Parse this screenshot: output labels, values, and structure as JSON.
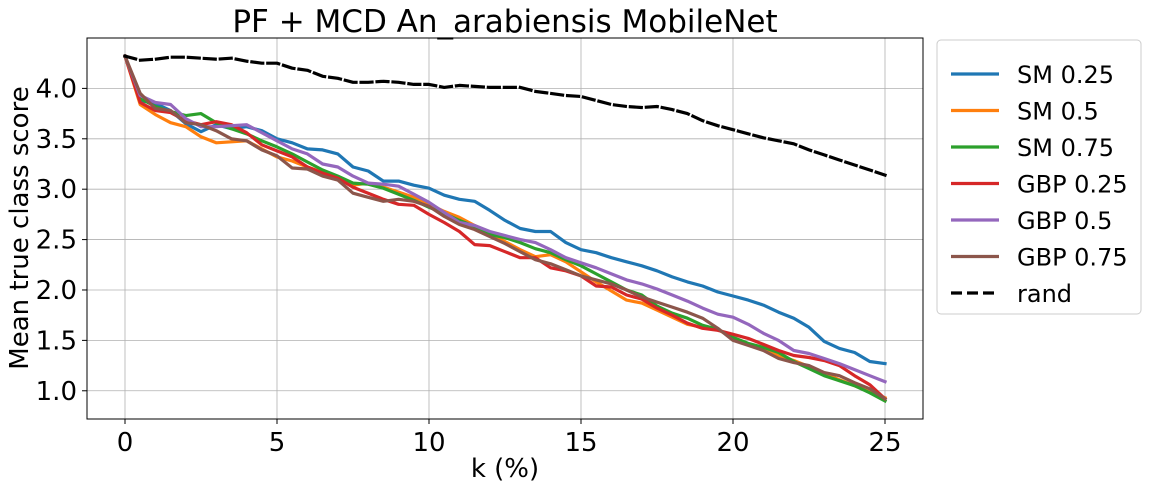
{
  "chart_data": {
    "type": "line",
    "title": "PF + MCD An_arabiensis MobileNet",
    "xlabel": "k (%)",
    "ylabel": "Mean true class score",
    "xlim": [
      -1.25,
      26.25
    ],
    "ylim": [
      0.72,
      4.5
    ],
    "xticks": [
      0,
      5,
      10,
      15,
      20,
      25
    ],
    "xtick_labels": [
      "0",
      "5",
      "10",
      "15",
      "20",
      "25"
    ],
    "yticks": [
      1.0,
      1.5,
      2.0,
      2.5,
      3.0,
      3.5,
      4.0
    ],
    "ytick_labels": [
      "1.0",
      "1.5",
      "2.0",
      "2.5",
      "3.0",
      "3.5",
      "4.0"
    ],
    "grid": true,
    "legend_position": "outside-right-top",
    "x": [
      0,
      0.5,
      1,
      1.5,
      2,
      2.5,
      3,
      3.5,
      4,
      4.5,
      5,
      5.5,
      6,
      6.5,
      7,
      7.5,
      8,
      8.5,
      9,
      9.5,
      10,
      10.5,
      11,
      11.5,
      12,
      12.5,
      13,
      13.5,
      14,
      14.5,
      15,
      15.5,
      16,
      16.5,
      17,
      17.5,
      18,
      18.5,
      19,
      19.5,
      20,
      20.5,
      21,
      21.5,
      22,
      22.5,
      23,
      23.5,
      24,
      24.5,
      25
    ],
    "series": [
      {
        "name": "SM 0.25",
        "color": "#1f77b4",
        "dashed": false,
        "values": [
          4.32,
          3.88,
          3.85,
          3.78,
          3.65,
          3.57,
          3.64,
          3.6,
          3.62,
          3.58,
          3.5,
          3.46,
          3.4,
          3.39,
          3.35,
          3.22,
          3.18,
          3.08,
          3.08,
          3.04,
          3.01,
          2.94,
          2.9,
          2.88,
          2.79,
          2.69,
          2.61,
          2.58,
          2.58,
          2.47,
          2.4,
          2.37,
          2.32,
          2.28,
          2.24,
          2.19,
          2.13,
          2.08,
          2.04,
          1.98,
          1.94,
          1.9,
          1.85,
          1.78,
          1.72,
          1.63,
          1.49,
          1.42,
          1.38,
          1.29,
          1.27
        ]
      },
      {
        "name": "SM 0.5",
        "color": "#ff7f0e",
        "dashed": false,
        "values": [
          4.32,
          3.84,
          3.74,
          3.66,
          3.62,
          3.52,
          3.46,
          3.47,
          3.48,
          3.4,
          3.32,
          3.28,
          3.22,
          3.17,
          3.1,
          3.04,
          3.06,
          3.02,
          2.97,
          2.92,
          2.85,
          2.78,
          2.72,
          2.64,
          2.57,
          2.48,
          2.4,
          2.33,
          2.35,
          2.28,
          2.18,
          2.08,
          1.99,
          1.9,
          1.87,
          1.8,
          1.73,
          1.66,
          1.63,
          1.61,
          1.52,
          1.46,
          1.41,
          1.35,
          1.3,
          1.24,
          1.17,
          1.11,
          1.05,
          0.99,
          0.93
        ]
      },
      {
        "name": "SM 0.75",
        "color": "#2ca02c",
        "dashed": false,
        "values": [
          4.32,
          3.9,
          3.82,
          3.77,
          3.73,
          3.75,
          3.66,
          3.6,
          3.55,
          3.48,
          3.42,
          3.35,
          3.27,
          3.19,
          3.13,
          3.06,
          3.05,
          3.01,
          2.95,
          2.89,
          2.82,
          2.76,
          2.69,
          2.63,
          2.55,
          2.52,
          2.47,
          2.41,
          2.37,
          2.3,
          2.24,
          2.16,
          2.08,
          2.0,
          1.95,
          1.84,
          1.77,
          1.72,
          1.65,
          1.61,
          1.53,
          1.47,
          1.43,
          1.38,
          1.29,
          1.22,
          1.15,
          1.1,
          1.05,
          0.98,
          0.9
        ]
      },
      {
        "name": "GBP 0.25",
        "color": "#d62728",
        "dashed": false,
        "values": [
          4.32,
          3.86,
          3.78,
          3.76,
          3.68,
          3.64,
          3.67,
          3.64,
          3.56,
          3.44,
          3.38,
          3.32,
          3.22,
          3.16,
          3.11,
          3.02,
          2.96,
          2.9,
          2.85,
          2.84,
          2.75,
          2.67,
          2.58,
          2.45,
          2.44,
          2.38,
          2.32,
          2.32,
          2.22,
          2.19,
          2.14,
          2.04,
          2.03,
          1.95,
          1.91,
          1.82,
          1.75,
          1.67,
          1.62,
          1.6,
          1.56,
          1.52,
          1.46,
          1.4,
          1.35,
          1.33,
          1.3,
          1.25,
          1.15,
          1.06,
          0.92
        ]
      },
      {
        "name": "GBP 0.5",
        "color": "#9467bd",
        "dashed": false,
        "values": [
          4.32,
          3.93,
          3.86,
          3.84,
          3.7,
          3.62,
          3.62,
          3.63,
          3.64,
          3.56,
          3.48,
          3.4,
          3.35,
          3.25,
          3.22,
          3.13,
          3.06,
          3.05,
          3.03,
          2.95,
          2.87,
          2.77,
          2.67,
          2.64,
          2.58,
          2.54,
          2.5,
          2.47,
          2.4,
          2.32,
          2.27,
          2.22,
          2.16,
          2.1,
          2.06,
          2.01,
          1.95,
          1.89,
          1.82,
          1.76,
          1.73,
          1.66,
          1.57,
          1.5,
          1.4,
          1.37,
          1.32,
          1.27,
          1.21,
          1.15,
          1.09
        ]
      },
      {
        "name": "GBP 0.75",
        "color": "#8c564b",
        "dashed": false,
        "values": [
          4.32,
          3.95,
          3.8,
          3.78,
          3.66,
          3.64,
          3.58,
          3.5,
          3.48,
          3.39,
          3.33,
          3.21,
          3.2,
          3.13,
          3.09,
          2.96,
          2.92,
          2.88,
          2.9,
          2.88,
          2.83,
          2.73,
          2.65,
          2.6,
          2.53,
          2.46,
          2.38,
          2.3,
          2.26,
          2.2,
          2.14,
          2.1,
          2.06,
          2.0,
          1.93,
          1.88,
          1.83,
          1.78,
          1.72,
          1.62,
          1.5,
          1.45,
          1.4,
          1.32,
          1.28,
          1.25,
          1.18,
          1.15,
          1.08,
          1.02,
          0.92
        ]
      },
      {
        "name": "rand",
        "color": "#000000",
        "dashed": true,
        "values": [
          4.32,
          4.28,
          4.29,
          4.31,
          4.31,
          4.3,
          4.29,
          4.3,
          4.27,
          4.25,
          4.25,
          4.2,
          4.18,
          4.12,
          4.1,
          4.06,
          4.06,
          4.07,
          4.06,
          4.04,
          4.04,
          4.01,
          4.03,
          4.02,
          4.01,
          4.01,
          4.01,
          3.97,
          3.95,
          3.93,
          3.92,
          3.88,
          3.84,
          3.82,
          3.81,
          3.82,
          3.79,
          3.75,
          3.68,
          3.63,
          3.59,
          3.55,
          3.51,
          3.48,
          3.45,
          3.39,
          3.34,
          3.29,
          3.24,
          3.19,
          3.14
        ]
      }
    ]
  }
}
